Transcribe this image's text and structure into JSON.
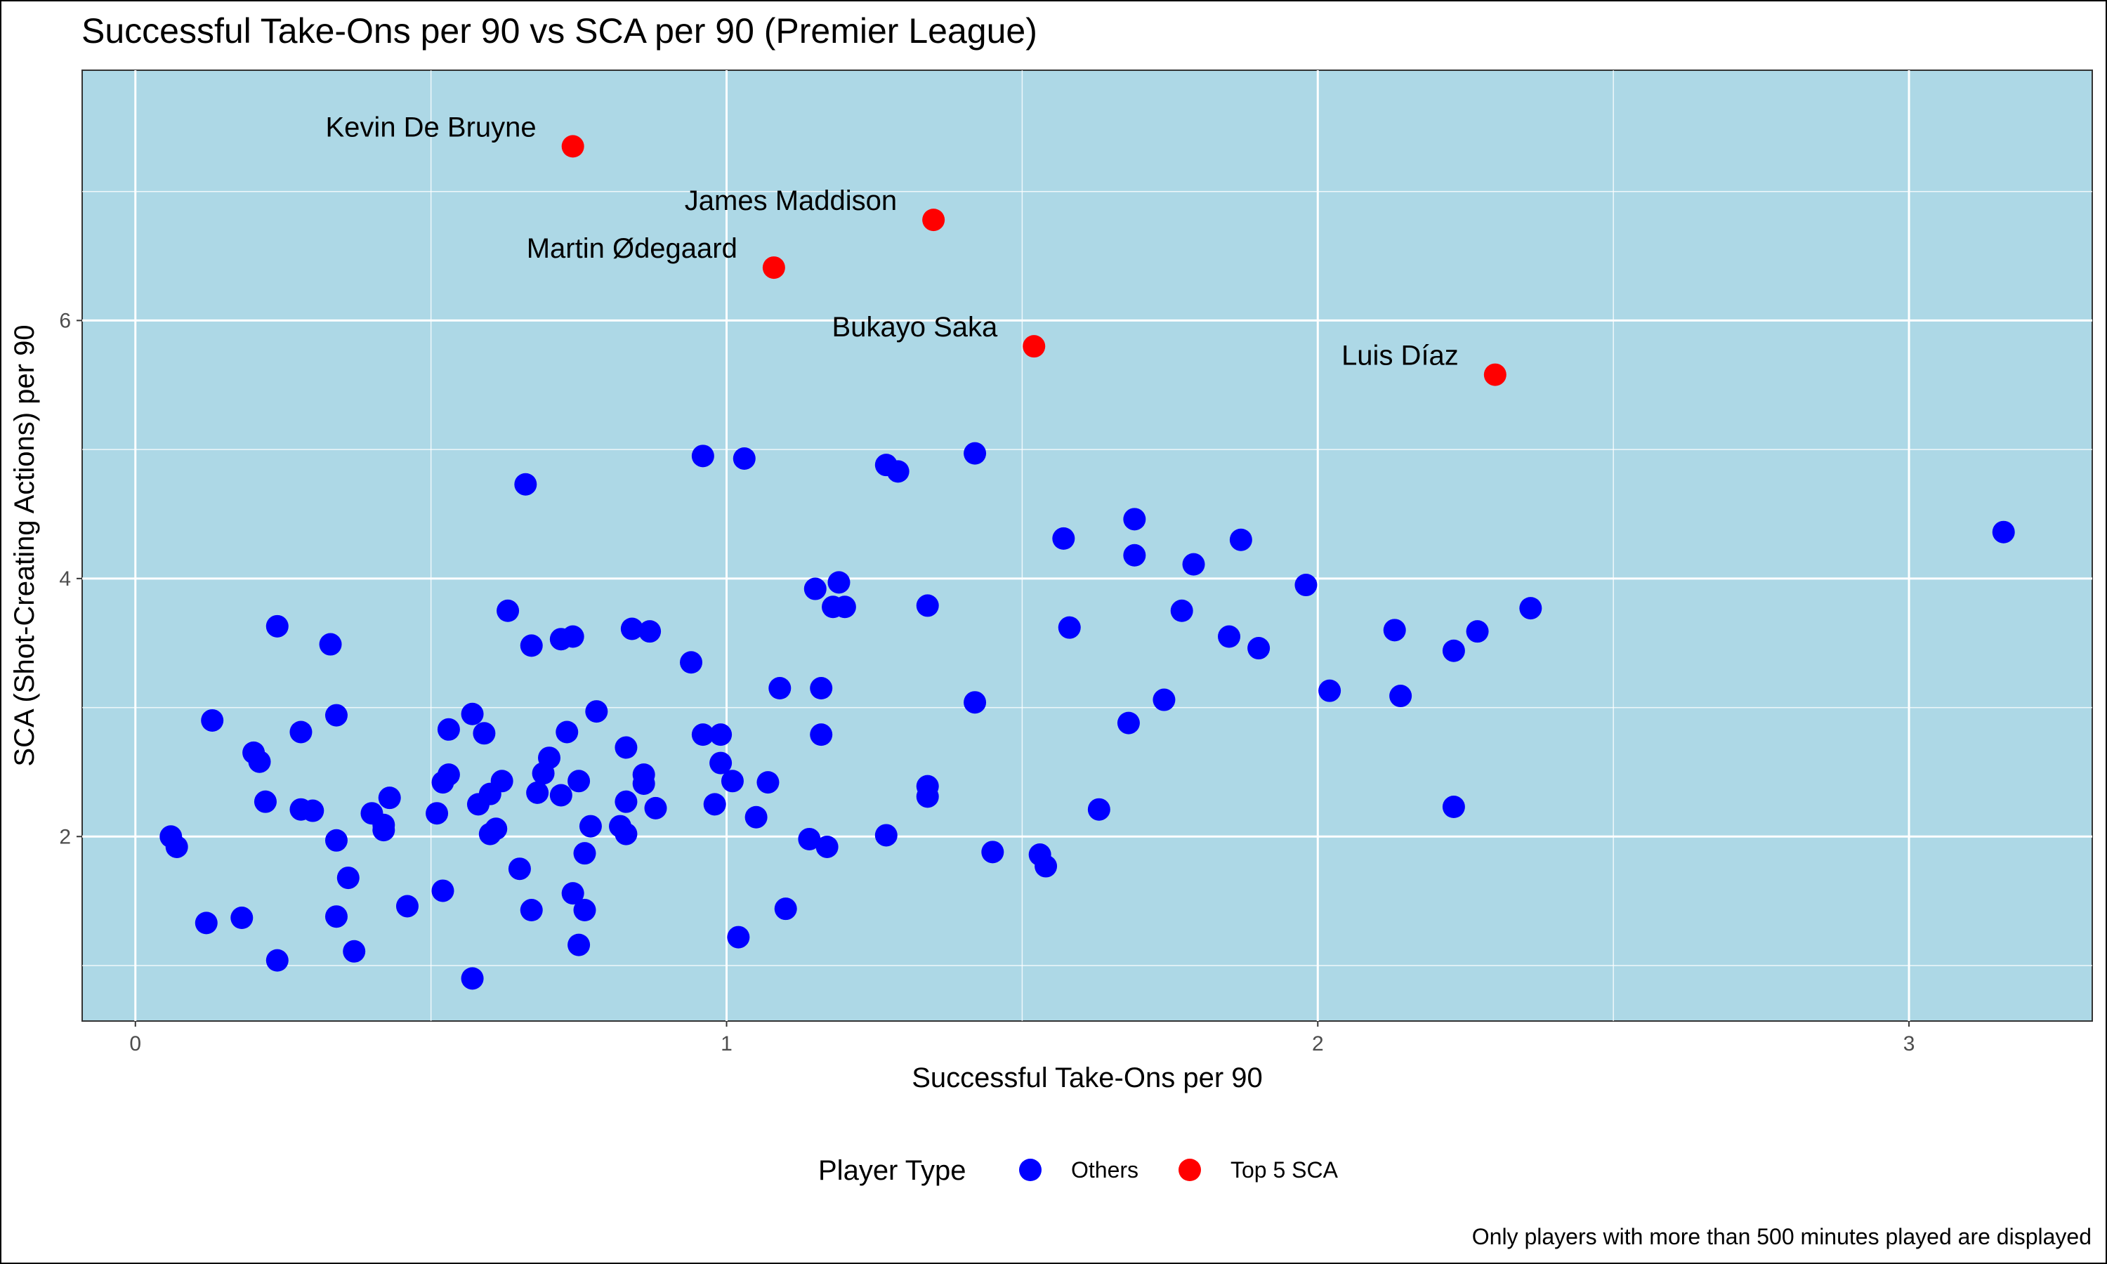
{
  "chart_data": {
    "type": "scatter",
    "title": "Successful Take-Ons per 90 vs SCA per 90 (Premier League)",
    "xlabel": "Successful Take-Ons per 90",
    "ylabel": "SCA (Shot-Creating Actions) per 90",
    "caption": "Only players with more than 500 minutes played are displayed",
    "xlim": [
      -0.09,
      3.31
    ],
    "ylim": [
      0.57,
      7.94
    ],
    "x_ticks": [
      0,
      1,
      2,
      3
    ],
    "x_tick_labels": [
      "0",
      "1",
      "2",
      "3"
    ],
    "y_ticks": [
      2,
      4,
      6
    ],
    "y_tick_labels": [
      "2",
      "4",
      "6"
    ],
    "grid": true,
    "panel_background": "#add8e6",
    "legend": {
      "title": "Player Type",
      "position": "bottom",
      "entries": [
        {
          "label": "Others",
          "color": "#0000ff"
        },
        {
          "label": "Top 5 SCA",
          "color": "#ff0000"
        }
      ]
    },
    "series": [
      {
        "name": "Top 5 SCA",
        "color": "#ff0000",
        "points": [
          {
            "x": 0.74,
            "y": 7.35,
            "label": "Kevin De Bruyne"
          },
          {
            "x": 1.35,
            "y": 6.78,
            "label": "James Maddison"
          },
          {
            "x": 1.08,
            "y": 6.41,
            "label": "Martin Ødegaard"
          },
          {
            "x": 1.52,
            "y": 5.8,
            "label": "Bukayo Saka"
          },
          {
            "x": 2.3,
            "y": 5.58,
            "label": "Luis Díaz"
          }
        ]
      },
      {
        "name": "Others",
        "color": "#0000ff",
        "points": [
          {
            "x": 0.06,
            "y": 2.0
          },
          {
            "x": 0.07,
            "y": 1.92
          },
          {
            "x": 0.12,
            "y": 1.33
          },
          {
            "x": 0.13,
            "y": 2.9
          },
          {
            "x": 0.18,
            "y": 1.37
          },
          {
            "x": 0.2,
            "y": 2.65
          },
          {
            "x": 0.21,
            "y": 2.58
          },
          {
            "x": 0.22,
            "y": 2.27
          },
          {
            "x": 0.24,
            "y": 3.63
          },
          {
            "x": 0.24,
            "y": 1.04
          },
          {
            "x": 0.28,
            "y": 2.81
          },
          {
            "x": 0.28,
            "y": 2.21
          },
          {
            "x": 0.3,
            "y": 2.2
          },
          {
            "x": 0.33,
            "y": 3.49
          },
          {
            "x": 0.34,
            "y": 2.94
          },
          {
            "x": 0.34,
            "y": 1.97
          },
          {
            "x": 0.34,
            "y": 1.38
          },
          {
            "x": 0.36,
            "y": 1.68
          },
          {
            "x": 0.37,
            "y": 1.11
          },
          {
            "x": 0.4,
            "y": 2.18
          },
          {
            "x": 0.42,
            "y": 2.09
          },
          {
            "x": 0.42,
            "y": 2.05
          },
          {
            "x": 0.43,
            "y": 2.3
          },
          {
            "x": 0.46,
            "y": 1.46
          },
          {
            "x": 0.51,
            "y": 2.18
          },
          {
            "x": 0.52,
            "y": 2.42
          },
          {
            "x": 0.52,
            "y": 1.58
          },
          {
            "x": 0.53,
            "y": 2.83
          },
          {
            "x": 0.53,
            "y": 2.48
          },
          {
            "x": 0.57,
            "y": 2.95
          },
          {
            "x": 0.57,
            "y": 0.9
          },
          {
            "x": 0.58,
            "y": 2.25
          },
          {
            "x": 0.59,
            "y": 2.8
          },
          {
            "x": 0.6,
            "y": 2.33
          },
          {
            "x": 0.6,
            "y": 2.02
          },
          {
            "x": 0.61,
            "y": 2.06
          },
          {
            "x": 0.62,
            "y": 2.43
          },
          {
            "x": 0.63,
            "y": 3.75
          },
          {
            "x": 0.65,
            "y": 1.75
          },
          {
            "x": 0.66,
            "y": 4.73
          },
          {
            "x": 0.67,
            "y": 3.48
          },
          {
            "x": 0.67,
            "y": 1.43
          },
          {
            "x": 0.68,
            "y": 2.34
          },
          {
            "x": 0.69,
            "y": 2.49
          },
          {
            "x": 0.7,
            "y": 2.61
          },
          {
            "x": 0.72,
            "y": 3.53
          },
          {
            "x": 0.72,
            "y": 2.32
          },
          {
            "x": 0.73,
            "y": 2.81
          },
          {
            "x": 0.74,
            "y": 3.55
          },
          {
            "x": 0.74,
            "y": 1.56
          },
          {
            "x": 0.75,
            "y": 1.16
          },
          {
            "x": 0.75,
            "y": 2.43
          },
          {
            "x": 0.76,
            "y": 1.87
          },
          {
            "x": 0.76,
            "y": 1.43
          },
          {
            "x": 0.77,
            "y": 2.08
          },
          {
            "x": 0.78,
            "y": 2.97
          },
          {
            "x": 0.82,
            "y": 2.08
          },
          {
            "x": 0.83,
            "y": 2.69
          },
          {
            "x": 0.83,
            "y": 2.27
          },
          {
            "x": 0.83,
            "y": 2.02
          },
          {
            "x": 0.84,
            "y": 3.61
          },
          {
            "x": 0.86,
            "y": 2.48
          },
          {
            "x": 0.86,
            "y": 2.41
          },
          {
            "x": 0.87,
            "y": 3.59
          },
          {
            "x": 0.88,
            "y": 2.22
          },
          {
            "x": 0.94,
            "y": 3.35
          },
          {
            "x": 0.96,
            "y": 4.95
          },
          {
            "x": 0.96,
            "y": 2.79
          },
          {
            "x": 0.98,
            "y": 2.25
          },
          {
            "x": 0.99,
            "y": 2.79
          },
          {
            "x": 0.99,
            "y": 2.57
          },
          {
            "x": 1.01,
            "y": 2.43
          },
          {
            "x": 1.02,
            "y": 1.22
          },
          {
            "x": 1.03,
            "y": 4.93
          },
          {
            "x": 1.05,
            "y": 2.15
          },
          {
            "x": 1.07,
            "y": 2.42
          },
          {
            "x": 1.09,
            "y": 3.15
          },
          {
            "x": 1.1,
            "y": 1.44
          },
          {
            "x": 1.14,
            "y": 1.98
          },
          {
            "x": 1.15,
            "y": 3.92
          },
          {
            "x": 1.16,
            "y": 3.15
          },
          {
            "x": 1.16,
            "y": 2.79
          },
          {
            "x": 1.17,
            "y": 1.92
          },
          {
            "x": 1.18,
            "y": 3.78
          },
          {
            "x": 1.19,
            "y": 3.97
          },
          {
            "x": 1.2,
            "y": 3.78
          },
          {
            "x": 1.27,
            "y": 4.88
          },
          {
            "x": 1.27,
            "y": 2.01
          },
          {
            "x": 1.29,
            "y": 4.83
          },
          {
            "x": 1.34,
            "y": 3.79
          },
          {
            "x": 1.34,
            "y": 2.39
          },
          {
            "x": 1.34,
            "y": 2.31
          },
          {
            "x": 1.42,
            "y": 4.97
          },
          {
            "x": 1.42,
            "y": 3.04
          },
          {
            "x": 1.45,
            "y": 1.88
          },
          {
            "x": 1.53,
            "y": 1.86
          },
          {
            "x": 1.54,
            "y": 1.77
          },
          {
            "x": 1.57,
            "y": 4.31
          },
          {
            "x": 1.58,
            "y": 3.62
          },
          {
            "x": 1.63,
            "y": 2.21
          },
          {
            "x": 1.68,
            "y": 2.88
          },
          {
            "x": 1.69,
            "y": 4.46
          },
          {
            "x": 1.69,
            "y": 4.18
          },
          {
            "x": 1.74,
            "y": 3.06
          },
          {
            "x": 1.77,
            "y": 3.75
          },
          {
            "x": 1.79,
            "y": 4.11
          },
          {
            "x": 1.85,
            "y": 3.55
          },
          {
            "x": 1.87,
            "y": 4.3
          },
          {
            "x": 1.9,
            "y": 3.46
          },
          {
            "x": 1.98,
            "y": 3.95
          },
          {
            "x": 2.02,
            "y": 3.13
          },
          {
            "x": 2.13,
            "y": 3.6
          },
          {
            "x": 2.14,
            "y": 3.09
          },
          {
            "x": 2.23,
            "y": 3.44
          },
          {
            "x": 2.23,
            "y": 2.23
          },
          {
            "x": 2.27,
            "y": 3.59
          },
          {
            "x": 2.36,
            "y": 3.77
          },
          {
            "x": 3.16,
            "y": 4.36
          }
        ]
      }
    ]
  }
}
